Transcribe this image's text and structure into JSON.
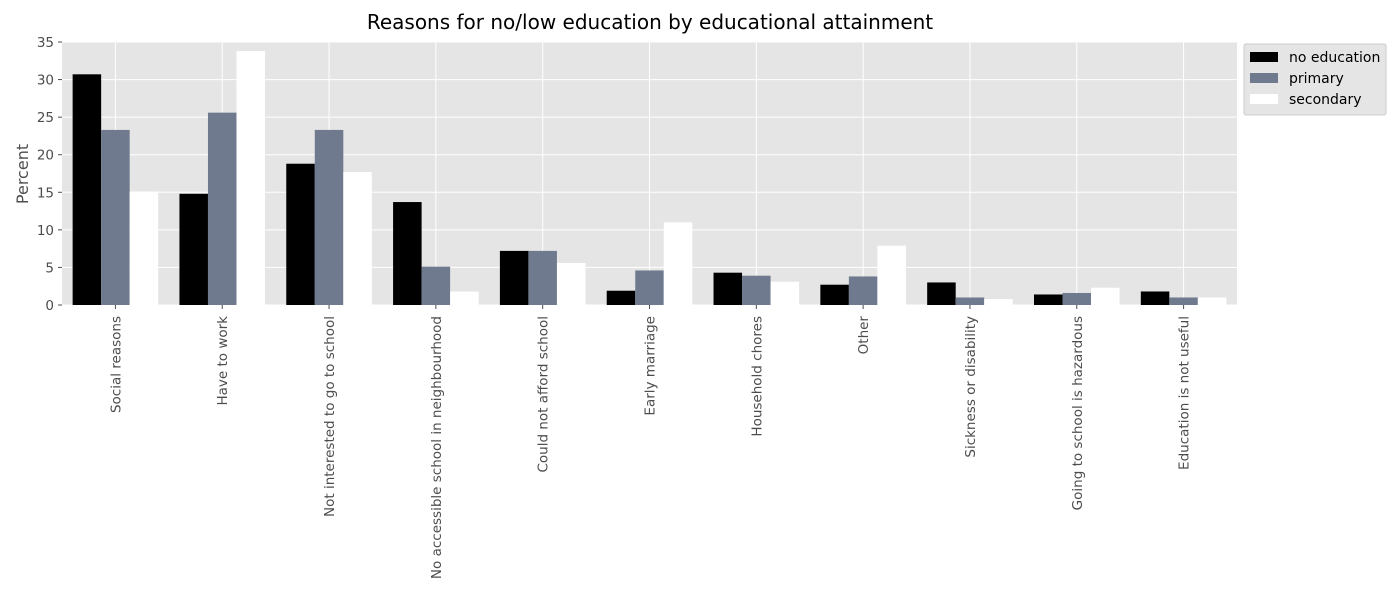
{
  "chart_data": {
    "type": "bar",
    "title": "Reasons for no/low education by educational attainment",
    "xlabel": "",
    "ylabel": "Percent",
    "ylim": [
      0,
      35
    ],
    "yticks": [
      0,
      5,
      10,
      15,
      20,
      25,
      30,
      35
    ],
    "grid": true,
    "legend_position": "upper-right outside plot",
    "categories": [
      "Social reasons",
      "Have to work",
      "Not interested to go to school",
      "No accessible school in neighbourhood",
      "Could not afford school",
      "Early marriage",
      "Household chores",
      "Other",
      "Sickness or disability",
      "Going to school is hazardous",
      "Education is not useful"
    ],
    "series": [
      {
        "name": "no education",
        "color": "#000000",
        "values": [
          30.7,
          14.8,
          18.8,
          13.7,
          7.2,
          1.9,
          4.3,
          2.7,
          3.0,
          1.4,
          1.8
        ]
      },
      {
        "name": "primary",
        "color": "#6f7a8e",
        "values": [
          23.3,
          25.6,
          23.3,
          5.1,
          7.2,
          4.6,
          3.9,
          3.8,
          1.0,
          1.6,
          1.0
        ]
      },
      {
        "name": "secondary",
        "color": "#ffffff",
        "values": [
          15.1,
          33.8,
          17.7,
          1.8,
          5.6,
          11.0,
          3.1,
          7.9,
          0.8,
          2.3,
          1.0
        ]
      }
    ],
    "colors": {
      "plot_background": "#e5e5e5",
      "grid": "#ffffff",
      "text": "#4d4d4d"
    }
  }
}
